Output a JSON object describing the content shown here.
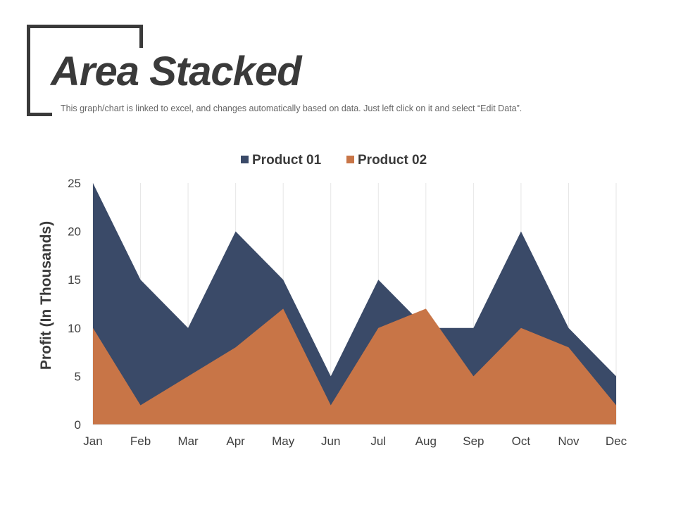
{
  "header": {
    "title": "Area Stacked",
    "subtitle": "This graph/chart is linked to excel, and changes automatically based on data. Just left click on it and select “Edit Data”."
  },
  "chart_data": {
    "type": "area",
    "categories": [
      "Jan",
      "Feb",
      "Mar",
      "Apr",
      "May",
      "Jun",
      "Jul",
      "Aug",
      "Sep",
      "Oct",
      "Nov",
      "Dec"
    ],
    "series": [
      {
        "name": "Product 01",
        "color": "#3a4a68",
        "values": [
          25,
          15,
          10,
          20,
          15,
          5,
          15,
          10,
          10,
          20,
          10,
          5
        ]
      },
      {
        "name": "Product 02",
        "color": "#c87547",
        "values": [
          10,
          2,
          5,
          8,
          12,
          2,
          10,
          12,
          5,
          10,
          8,
          2
        ]
      }
    ],
    "title": "",
    "xlabel": "",
    "ylabel": "Profit (In Thousands)",
    "ylim": [
      0,
      25
    ],
    "yticks": [
      0,
      5,
      10,
      15,
      20,
      25
    ],
    "legend_position": "top",
    "grid": "vertical"
  }
}
